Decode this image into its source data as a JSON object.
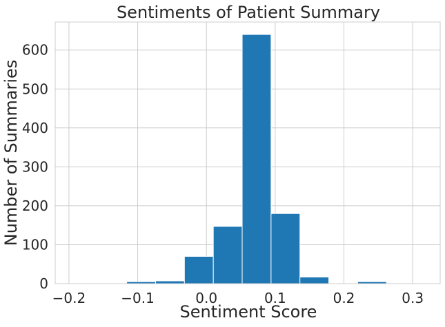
{
  "chart_data": {
    "type": "bar",
    "subtype": "histogram",
    "title": "Sentiments of Patient Summary",
    "xlabel": "Sentiment Score",
    "ylabel": "Number of Summaries",
    "bins": [
      {
        "x0": -0.2,
        "x1": -0.158,
        "count": 0
      },
      {
        "x0": -0.158,
        "x1": -0.116,
        "count": 1
      },
      {
        "x0": -0.116,
        "x1": -0.074,
        "count": 5
      },
      {
        "x0": -0.074,
        "x1": -0.032,
        "count": 7
      },
      {
        "x0": -0.032,
        "x1": 0.01,
        "count": 70
      },
      {
        "x0": 0.01,
        "x1": 0.052,
        "count": 147
      },
      {
        "x0": 0.052,
        "x1": 0.094,
        "count": 640
      },
      {
        "x0": 0.094,
        "x1": 0.136,
        "count": 180
      },
      {
        "x0": 0.136,
        "x1": 0.178,
        "count": 17
      },
      {
        "x0": 0.178,
        "x1": 0.22,
        "count": 0
      },
      {
        "x0": 0.22,
        "x1": 0.262,
        "count": 5
      },
      {
        "x0": 0.262,
        "x1": 0.304,
        "count": 0
      }
    ],
    "xlim": [
      -0.22,
      0.34
    ],
    "ylim": [
      0,
      672
    ],
    "x_ticks": [
      -0.2,
      -0.1,
      0.0,
      0.1,
      0.2,
      0.3
    ],
    "x_tick_labels": [
      "−0.2",
      "−0.1",
      "0.0",
      "0.1",
      "0.2",
      "0.3"
    ],
    "y_ticks": [
      0,
      100,
      200,
      300,
      400,
      500,
      600
    ],
    "y_tick_labels": [
      "0",
      "100",
      "200",
      "300",
      "400",
      "500",
      "600"
    ],
    "grid": true,
    "colors": {
      "bar": "#1f77b4",
      "grid": "#cccccc",
      "frame": "#cccccc",
      "text": "#262626"
    }
  }
}
